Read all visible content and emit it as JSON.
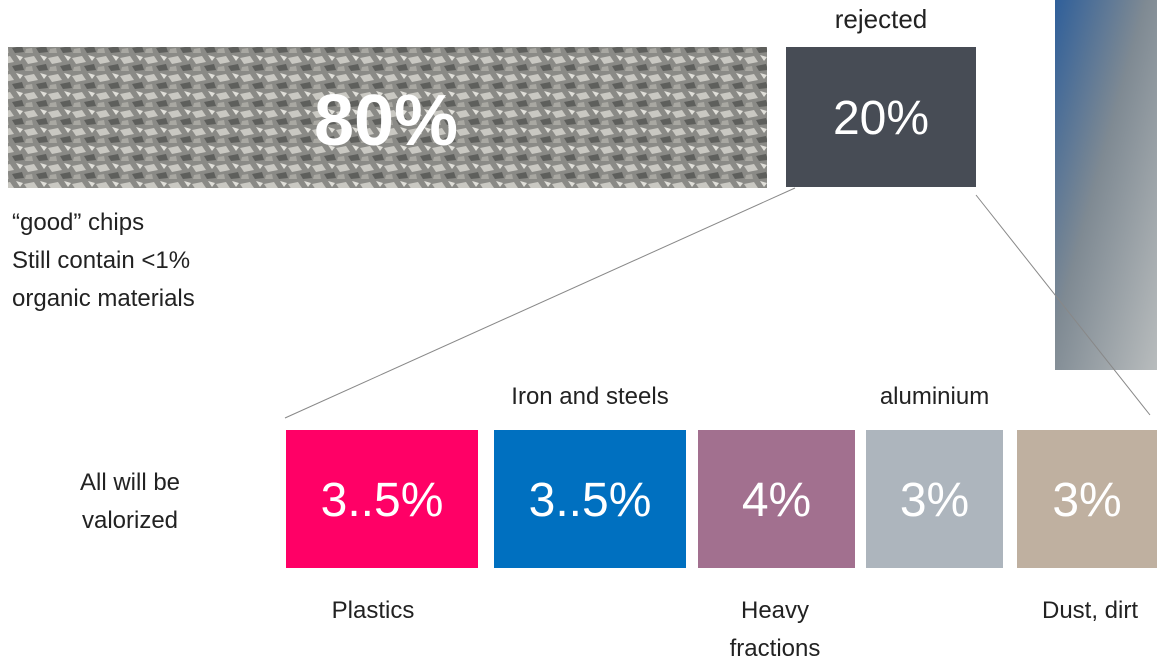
{
  "top": {
    "main_share": "80%",
    "rejected_label": "rejected",
    "rejected_share": "20%",
    "good_note": [
      "“good” chips",
      "Still contain <1%",
      "organic materials"
    ]
  },
  "bottom": {
    "note": [
      "All will be",
      "valorized"
    ],
    "fractions": [
      {
        "share": "3..5%",
        "label_below": [
          "Plastics"
        ],
        "color": "#ff0066"
      },
      {
        "share": "3..5%",
        "label_above": "Iron and steels",
        "color": "#0070c0"
      },
      {
        "share": "4%",
        "label_below": [
          "Heavy",
          "fractions"
        ],
        "color": "#a2708f"
      },
      {
        "share": "3%",
        "label_above": "aluminium",
        "color": "#adb5bd"
      },
      {
        "share": "3%",
        "label_below": [
          "Dust, dirt"
        ],
        "color": "#bfb0a0"
      }
    ]
  }
}
